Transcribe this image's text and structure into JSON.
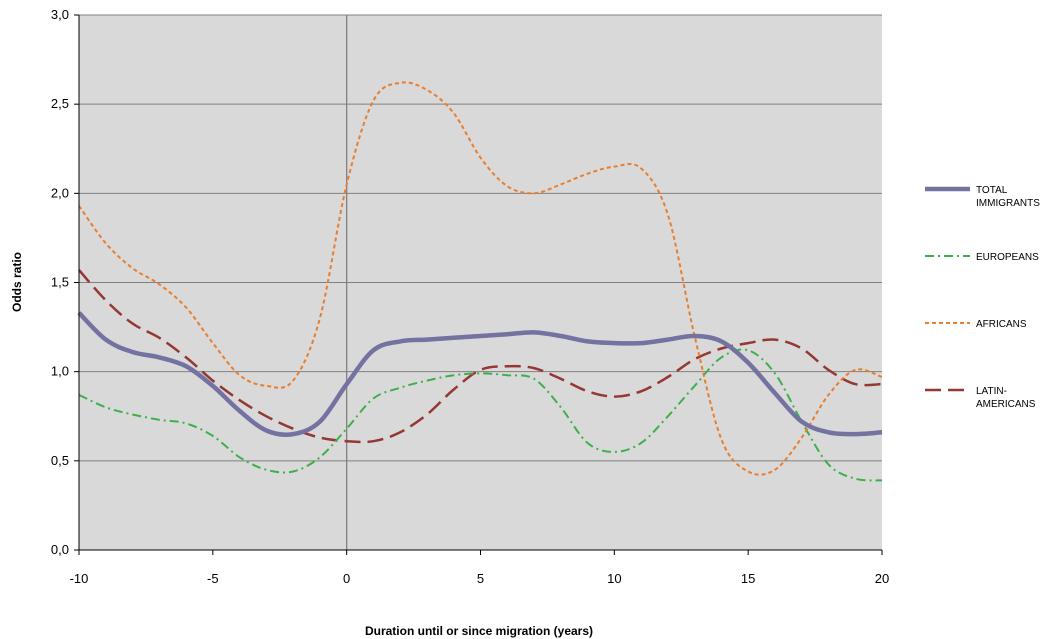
{
  "chart_data": {
    "type": "line",
    "title": "",
    "xlabel": "Duration until or since migration (years)",
    "ylabel": "Odds ratio",
    "xlim": [
      -10,
      20
    ],
    "ylim": [
      0,
      3
    ],
    "x_ticks": [
      -10,
      -5,
      0,
      5,
      10,
      15,
      20
    ],
    "x_tick_labels": [
      "-10",
      "-5",
      "0",
      "5",
      "10",
      "15",
      "20"
    ],
    "y_ticks": [
      0,
      0.5,
      1,
      1.5,
      2,
      2.5,
      3
    ],
    "y_tick_labels": [
      "0,0",
      "0,5",
      "1,0",
      "1,5",
      "2,0",
      "2,5",
      "3,0"
    ],
    "grid": "horizontal",
    "reference_line_x": 0,
    "legend_position": "right",
    "plot_background": "#d9d9d9",
    "series": [
      {
        "name": [
          "TOTAL",
          "IMMIGRANTS"
        ],
        "color": "#7472a0",
        "style": "solid-thick",
        "x": [
          -10,
          -9,
          -8,
          -7,
          -6,
          -5,
          -4,
          -3,
          -2,
          -1,
          0,
          1,
          2,
          3,
          4,
          5,
          6,
          7,
          8,
          9,
          10,
          11,
          12,
          13,
          14,
          15,
          16,
          17,
          18,
          19,
          20
        ],
        "y": [
          1.33,
          1.18,
          1.11,
          1.08,
          1.03,
          0.92,
          0.78,
          0.67,
          0.65,
          0.72,
          0.93,
          1.12,
          1.17,
          1.18,
          1.19,
          1.2,
          1.21,
          1.22,
          1.2,
          1.17,
          1.16,
          1.16,
          1.18,
          1.2,
          1.17,
          1.05,
          0.88,
          0.72,
          0.66,
          0.65,
          0.66
        ]
      },
      {
        "name": [
          "EUROPEANS"
        ],
        "color": "#3cb04a",
        "style": "dash-dot",
        "x": [
          -10,
          -9,
          -8,
          -7,
          -6,
          -5,
          -4,
          -3,
          -2,
          -1,
          0,
          1,
          2,
          3,
          4,
          5,
          6,
          7,
          8,
          9,
          10,
          11,
          12,
          13,
          14,
          15,
          16,
          17,
          18,
          19,
          20
        ],
        "y": [
          0.87,
          0.8,
          0.76,
          0.73,
          0.71,
          0.64,
          0.52,
          0.45,
          0.44,
          0.52,
          0.68,
          0.85,
          0.91,
          0.95,
          0.98,
          0.99,
          0.98,
          0.96,
          0.8,
          0.6,
          0.55,
          0.6,
          0.75,
          0.92,
          1.08,
          1.12,
          0.99,
          0.72,
          0.48,
          0.4,
          0.39
        ]
      },
      {
        "name": [
          "AFRICANS"
        ],
        "color": "#e87e2e",
        "style": "short-dash",
        "x": [
          -10,
          -9,
          -8,
          -7,
          -6,
          -5,
          -4,
          -3,
          -2,
          -1,
          0,
          1,
          2,
          3,
          4,
          5,
          6,
          7,
          8,
          9,
          10,
          11,
          12,
          13,
          14,
          15,
          16,
          17,
          18,
          19,
          20
        ],
        "y": [
          1.93,
          1.72,
          1.58,
          1.49,
          1.36,
          1.16,
          0.98,
          0.92,
          0.95,
          1.3,
          2.05,
          2.52,
          2.62,
          2.58,
          2.45,
          2.2,
          2.04,
          2.0,
          2.05,
          2.11,
          2.15,
          2.14,
          1.88,
          1.2,
          0.62,
          0.44,
          0.45,
          0.63,
          0.87,
          1.01,
          0.97
        ]
      },
      {
        "name": [
          "LATIN-",
          "AMERICANS"
        ],
        "color": "#953734",
        "style": "long-dash",
        "x": [
          -10,
          -9,
          -8,
          -7,
          -6,
          -5,
          -4,
          -3,
          -2,
          -1,
          0,
          1,
          2,
          3,
          4,
          5,
          6,
          7,
          8,
          9,
          10,
          11,
          12,
          13,
          14,
          15,
          16,
          17,
          18,
          19,
          20
        ],
        "y": [
          1.57,
          1.4,
          1.27,
          1.19,
          1.08,
          0.95,
          0.84,
          0.75,
          0.68,
          0.63,
          0.61,
          0.61,
          0.66,
          0.76,
          0.9,
          1.01,
          1.03,
          1.02,
          0.96,
          0.89,
          0.86,
          0.89,
          0.97,
          1.07,
          1.13,
          1.16,
          1.18,
          1.13,
          1.01,
          0.93,
          0.93
        ]
      }
    ]
  }
}
